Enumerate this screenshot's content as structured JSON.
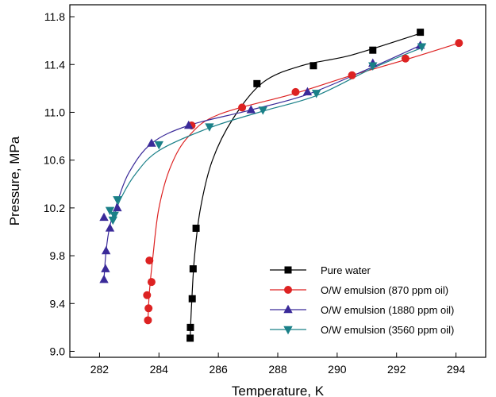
{
  "chart_data": {
    "type": "scatter",
    "xlabel": "Temperature, K",
    "ylabel": "Pressure, MPa",
    "xlim": [
      281,
      295
    ],
    "ylim": [
      8.95,
      11.9
    ],
    "xticks": [
      282,
      284,
      286,
      288,
      290,
      292,
      294
    ],
    "yticks": [
      9.0,
      9.4,
      9.8,
      10.2,
      10.6,
      11.0,
      11.4,
      11.8
    ],
    "ytick_labels": [
      "9.0",
      "9.4",
      "9.8",
      "10.2",
      "10.6",
      "11.0",
      "11.4",
      "11.8"
    ],
    "grid": false,
    "legend_position": "bottom-right",
    "series": [
      {
        "name": "Pure water",
        "color": "#000000",
        "marker": "square",
        "points": [
          [
            285.05,
            9.11
          ],
          [
            285.06,
            9.2
          ],
          [
            285.12,
            9.44
          ],
          [
            285.15,
            9.69
          ],
          [
            285.25,
            10.03
          ],
          [
            287.3,
            11.24
          ],
          [
            289.2,
            11.39
          ],
          [
            291.2,
            11.52
          ],
          [
            292.8,
            11.67
          ]
        ],
        "fit": [
          [
            285.05,
            9.11
          ],
          [
            285.1,
            9.4
          ],
          [
            285.2,
            9.8
          ],
          [
            285.4,
            10.2
          ],
          [
            285.8,
            10.6
          ],
          [
            286.5,
            10.95
          ],
          [
            287.5,
            11.25
          ],
          [
            288.8,
            11.39
          ],
          [
            290.5,
            11.48
          ],
          [
            292.8,
            11.66
          ]
        ]
      },
      {
        "name": "O/W emulsion (870 ppm oil)",
        "color": "#dd2222",
        "marker": "circle",
        "points": [
          [
            283.63,
            9.26
          ],
          [
            283.65,
            9.36
          ],
          [
            283.6,
            9.47
          ],
          [
            283.75,
            9.58
          ],
          [
            283.68,
            9.76
          ],
          [
            285.1,
            10.89
          ],
          [
            286.8,
            11.04
          ],
          [
            288.6,
            11.17
          ],
          [
            290.5,
            11.31
          ],
          [
            292.3,
            11.45
          ],
          [
            294.1,
            11.58
          ]
        ],
        "fit": [
          [
            283.63,
            9.26
          ],
          [
            283.68,
            9.5
          ],
          [
            283.8,
            9.8
          ],
          [
            284.0,
            10.2
          ],
          [
            284.4,
            10.55
          ],
          [
            285.0,
            10.8
          ],
          [
            286.0,
            10.98
          ],
          [
            288.6,
            11.16
          ],
          [
            290.5,
            11.31
          ],
          [
            292.3,
            11.44
          ],
          [
            294.1,
            11.58
          ]
        ]
      },
      {
        "name": "O/W emulsion (1880 ppm oil)",
        "color": "#3a2a99",
        "marker": "triangle-up",
        "points": [
          [
            282.15,
            9.6
          ],
          [
            282.2,
            9.69
          ],
          [
            282.22,
            9.84
          ],
          [
            282.35,
            10.03
          ],
          [
            282.15,
            10.12
          ],
          [
            282.6,
            10.2
          ],
          [
            283.75,
            10.74
          ],
          [
            285.0,
            10.89
          ],
          [
            287.1,
            11.02
          ],
          [
            289.0,
            11.17
          ],
          [
            291.2,
            11.41
          ],
          [
            292.8,
            11.56
          ]
        ],
        "fit": [
          [
            282.15,
            9.6
          ],
          [
            282.22,
            9.84
          ],
          [
            282.35,
            10.05
          ],
          [
            282.6,
            10.25
          ],
          [
            283.0,
            10.5
          ],
          [
            283.75,
            10.74
          ],
          [
            285.0,
            10.89
          ],
          [
            287.1,
            11.02
          ],
          [
            289.0,
            11.15
          ],
          [
            291.2,
            11.38
          ],
          [
            292.8,
            11.56
          ]
        ]
      },
      {
        "name": "O/W emulsion (3560 ppm oil)",
        "color": "#1a8088",
        "marker": "triangle-down",
        "points": [
          [
            282.45,
            10.1
          ],
          [
            282.5,
            10.14
          ],
          [
            282.35,
            10.18
          ],
          [
            282.6,
            10.27
          ],
          [
            284.0,
            10.73
          ],
          [
            285.7,
            10.88
          ],
          [
            287.5,
            11.02
          ],
          [
            289.3,
            11.16
          ],
          [
            291.2,
            11.39
          ],
          [
            292.85,
            11.55
          ]
        ],
        "fit": [
          [
            282.45,
            10.1
          ],
          [
            282.7,
            10.27
          ],
          [
            283.2,
            10.48
          ],
          [
            284.0,
            10.68
          ],
          [
            285.7,
            10.87
          ],
          [
            287.5,
            11.01
          ],
          [
            289.3,
            11.14
          ],
          [
            291.2,
            11.37
          ],
          [
            292.85,
            11.54
          ]
        ]
      }
    ]
  }
}
